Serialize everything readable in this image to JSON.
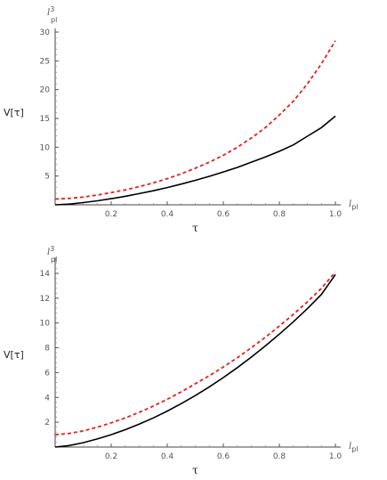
{
  "chart_data": [
    {
      "type": "line",
      "ylabel": "V[τ]",
      "xlabel": "τ",
      "x_unit": {
        "base": "l",
        "sub": "pl"
      },
      "y_unit": {
        "base": "l",
        "sup": "3",
        "sub": "pl"
      },
      "xlim": [
        0,
        1.0
      ],
      "ylim": [
        0,
        30
      ],
      "xticks": [
        "0.2",
        "0.4",
        "0.6",
        "0.8",
        "1.0"
      ],
      "yticks": [
        "5",
        "10",
        "15",
        "20",
        "25",
        "30"
      ],
      "series": [
        {
          "style": "solid",
          "color": "#000000",
          "x": [
            0.0,
            0.05,
            0.1,
            0.15,
            0.2,
            0.25,
            0.3,
            0.35,
            0.4,
            0.45,
            0.5,
            0.55,
            0.6,
            0.65,
            0.7,
            0.75,
            0.8,
            0.85,
            0.9,
            0.95,
            1.0
          ],
          "y": [
            0.0,
            0.12,
            0.38,
            0.7,
            1.07,
            1.49,
            1.95,
            2.45,
            3.0,
            3.6,
            4.25,
            4.95,
            5.7,
            6.5,
            7.4,
            8.3,
            9.3,
            10.4,
            11.9,
            13.4,
            15.4
          ]
        },
        {
          "style": "dashed",
          "color": "#e32020",
          "x": [
            0.0,
            0.05,
            0.1,
            0.15,
            0.2,
            0.25,
            0.3,
            0.35,
            0.4,
            0.45,
            0.5,
            0.55,
            0.6,
            0.65,
            0.7,
            0.75,
            0.8,
            0.85,
            0.9,
            0.95,
            1.0
          ],
          "y": [
            1.0,
            1.12,
            1.35,
            1.7,
            2.12,
            2.6,
            3.15,
            3.8,
            4.55,
            5.4,
            6.35,
            7.4,
            8.6,
            10.0,
            11.6,
            13.4,
            15.6,
            18.0,
            21.0,
            24.5,
            28.5
          ]
        }
      ]
    },
    {
      "type": "line",
      "ylabel": "V[τ]",
      "xlabel": "τ",
      "x_unit": {
        "base": "l",
        "sub": "pl"
      },
      "y_unit": {
        "base": "l",
        "sup": "3",
        "sub": "pl"
      },
      "xlim": [
        0,
        1.0
      ],
      "ylim": [
        0,
        15
      ],
      "xticks": [
        "0.2",
        "0.4",
        "0.6",
        "0.8",
        "1.0"
      ],
      "yticks": [
        "2",
        "4",
        "6",
        "8",
        "10",
        "12",
        "14"
      ],
      "series": [
        {
          "style": "solid",
          "color": "#000000",
          "x": [
            0.0,
            0.05,
            0.1,
            0.15,
            0.2,
            0.25,
            0.3,
            0.35,
            0.4,
            0.45,
            0.5,
            0.55,
            0.6,
            0.65,
            0.7,
            0.75,
            0.8,
            0.85,
            0.9,
            0.95,
            1.0
          ],
          "y": [
            0.0,
            0.12,
            0.35,
            0.65,
            1.0,
            1.4,
            1.85,
            2.35,
            2.9,
            3.5,
            4.15,
            4.85,
            5.6,
            6.4,
            7.25,
            8.15,
            9.1,
            10.1,
            11.15,
            12.3,
            13.9
          ]
        },
        {
          "style": "dashed",
          "color": "#e32020",
          "x": [
            0.0,
            0.05,
            0.1,
            0.15,
            0.2,
            0.25,
            0.3,
            0.35,
            0.4,
            0.45,
            0.5,
            0.55,
            0.6,
            0.65,
            0.7,
            0.75,
            0.8,
            0.85,
            0.9,
            0.95,
            1.0
          ],
          "y": [
            1.0,
            1.1,
            1.3,
            1.6,
            1.95,
            2.35,
            2.8,
            3.3,
            3.85,
            4.45,
            5.1,
            5.75,
            6.45,
            7.2,
            8.0,
            8.85,
            9.75,
            10.7,
            11.7,
            12.8,
            14.1
          ]
        }
      ]
    }
  ]
}
